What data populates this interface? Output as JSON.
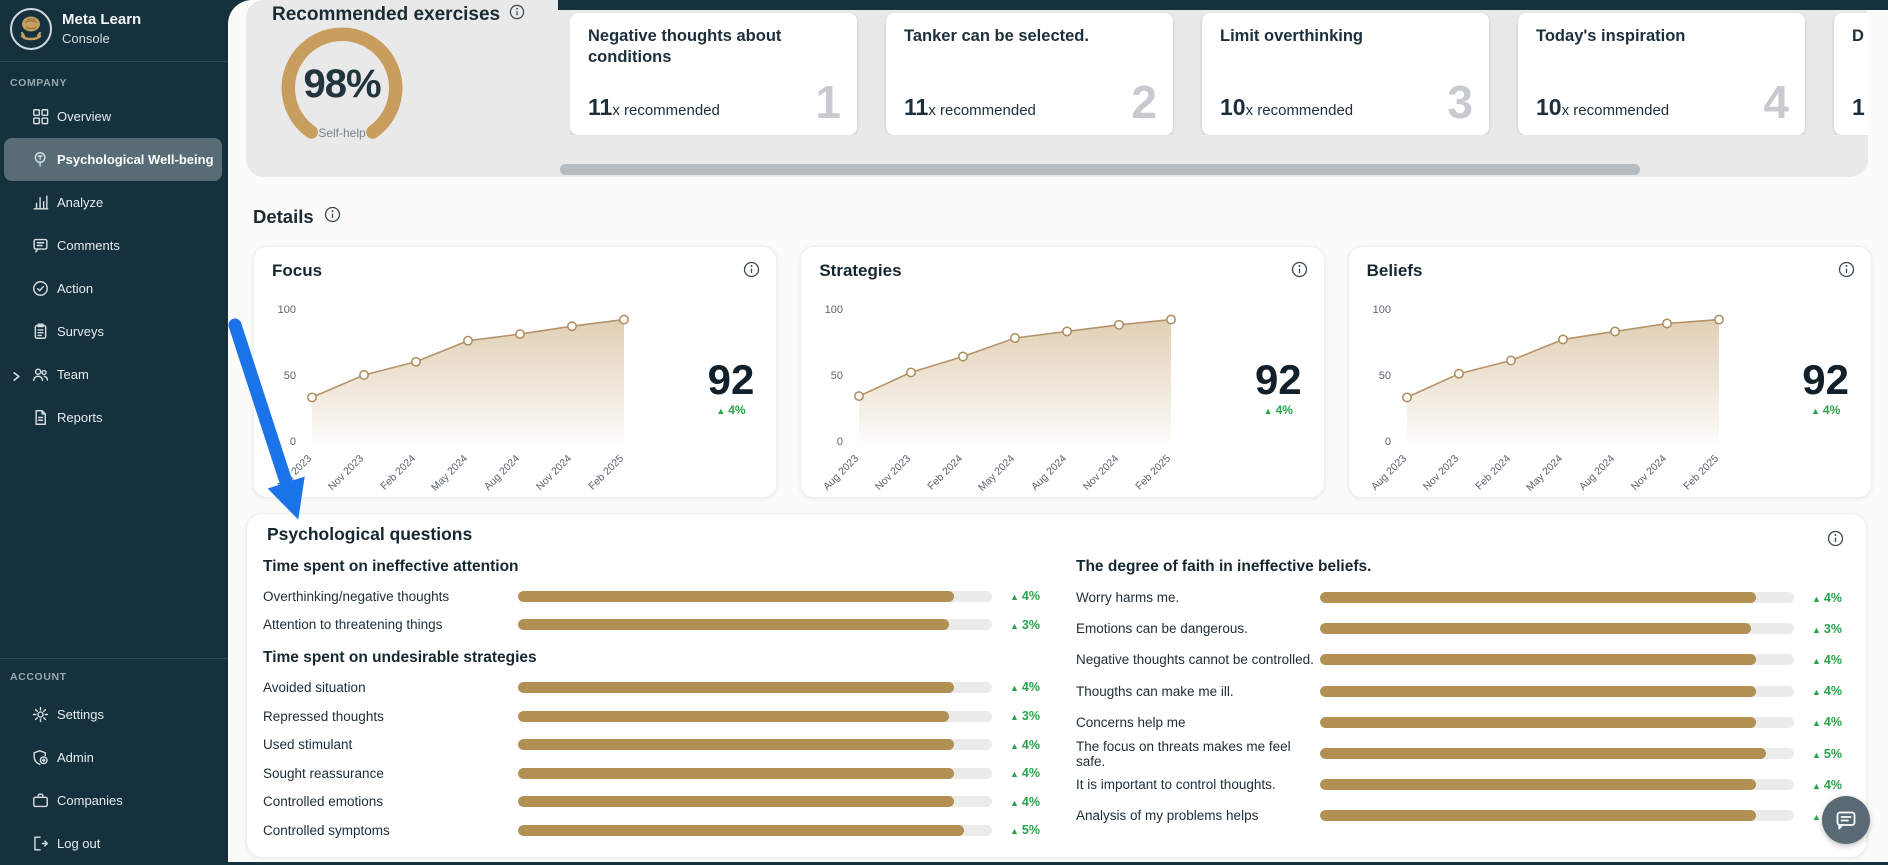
{
  "brand": {
    "title": "Meta Learn",
    "subtitle": "Console"
  },
  "nav": {
    "company_label": "COMPANY",
    "account_label": "ACCOUNT",
    "company_items": [
      {
        "label": "Overview"
      },
      {
        "label": "Psychological Well-being"
      },
      {
        "label": "Analyze"
      },
      {
        "label": "Comments"
      },
      {
        "label": "Action"
      },
      {
        "label": "Surveys"
      },
      {
        "label": "Team"
      },
      {
        "label": "Reports"
      }
    ],
    "account_items": [
      {
        "label": "Settings"
      },
      {
        "label": "Admin"
      },
      {
        "label": "Companies"
      },
      {
        "label": "Log out"
      }
    ]
  },
  "recommended": {
    "title": "Recommended exercises",
    "gauge": {
      "value": "98%",
      "label": "Self-help"
    },
    "cards": [
      {
        "title": "Negative thoughts about conditions",
        "count": "11",
        "suffix": "x recommended",
        "rank": "1"
      },
      {
        "title": "Tanker can be selected.",
        "count": "11",
        "suffix": "x recommended",
        "rank": "2"
      },
      {
        "title": "Limit overthinking",
        "count": "10",
        "suffix": "x recommended",
        "rank": "3"
      },
      {
        "title": "Today's inspiration",
        "count": "10",
        "suffix": "x recommended",
        "rank": "4"
      },
      {
        "title": "D",
        "count": "1",
        "suffix": "",
        "rank": ""
      }
    ]
  },
  "details": {
    "title": "Details",
    "y_ticks": [
      "100",
      "50",
      "0"
    ],
    "charts": [
      {
        "title": "Focus",
        "score": "92",
        "delta": "4%"
      },
      {
        "title": "Strategies",
        "score": "92",
        "delta": "4%"
      },
      {
        "title": "Beliefs",
        "score": "92",
        "delta": "4%"
      }
    ]
  },
  "chart_data": [
    {
      "type": "area",
      "title": "Focus",
      "x": [
        "Aug 2023",
        "Nov 2023",
        "Feb 2024",
        "May 2024",
        "Aug 2024",
        "Nov 2024",
        "Feb 2025"
      ],
      "values": [
        33,
        50,
        60,
        76,
        81,
        87,
        92
      ],
      "ylim": [
        0,
        100
      ],
      "line_color": "#b5936a"
    },
    {
      "type": "area",
      "title": "Strategies",
      "x": [
        "Aug 2023",
        "Nov 2023",
        "Feb 2024",
        "May 2024",
        "Aug 2024",
        "Nov 2024",
        "Feb 2025"
      ],
      "values": [
        34,
        52,
        64,
        78,
        83,
        88,
        92
      ],
      "ylim": [
        0,
        100
      ],
      "line_color": "#b5936a"
    },
    {
      "type": "area",
      "title": "Beliefs",
      "x": [
        "Aug 2023",
        "Nov 2023",
        "Feb 2024",
        "May 2024",
        "Aug 2024",
        "Nov 2024",
        "Feb 2025"
      ],
      "values": [
        33,
        51,
        61,
        77,
        83,
        89,
        92
      ],
      "ylim": [
        0,
        100
      ],
      "line_color": "#b5936a"
    }
  ],
  "questions": {
    "title": "Psychological questions",
    "groups_left": [
      {
        "header": "Time spent on ineffective attention",
        "rows": [
          {
            "label": "Overthinking/negative thoughts",
            "delta": "4%",
            "fill": 92
          },
          {
            "label": "Attention to threatening things",
            "delta": "3%",
            "fill": 91
          }
        ]
      },
      {
        "header": "Time spent on undesirable strategies",
        "rows": [
          {
            "label": "Avoided situation",
            "delta": "4%",
            "fill": 92
          },
          {
            "label": "Repressed thoughts",
            "delta": "3%",
            "fill": 91
          },
          {
            "label": "Used stimulant",
            "delta": "4%",
            "fill": 92
          },
          {
            "label": "Sought reassurance",
            "delta": "4%",
            "fill": 92
          },
          {
            "label": "Controlled emotions",
            "delta": "4%",
            "fill": 92
          },
          {
            "label": "Controlled symptoms",
            "delta": "5%",
            "fill": 94
          }
        ]
      }
    ],
    "group_right": {
      "header": "The degree of faith in ineffective beliefs.",
      "rows": [
        {
          "label": "Worry harms me.",
          "delta": "4%",
          "fill": 92
        },
        {
          "label": "Emotions can be dangerous.",
          "delta": "3%",
          "fill": 91
        },
        {
          "label": "Negative thoughts cannot be controlled.",
          "delta": "4%",
          "fill": 92
        },
        {
          "label": "Thougths can make me ill.",
          "delta": "4%",
          "fill": 92
        },
        {
          "label": "Concerns help me",
          "delta": "4%",
          "fill": 92
        },
        {
          "label": "The focus on threats makes me feel safe.",
          "delta": "5%",
          "fill": 94
        },
        {
          "label": "It is important to control thoughts.",
          "delta": "4%",
          "fill": 92
        },
        {
          "label": "Analysis of my problems helps",
          "delta": "4%",
          "fill": 92
        }
      ]
    }
  },
  "colors": {
    "accent_gold": "#b28f52",
    "gauge_gold": "#c79e5e",
    "green": "#27a449",
    "sidebar_bg": "#15313d",
    "arrow_blue": "#1a73e8"
  }
}
